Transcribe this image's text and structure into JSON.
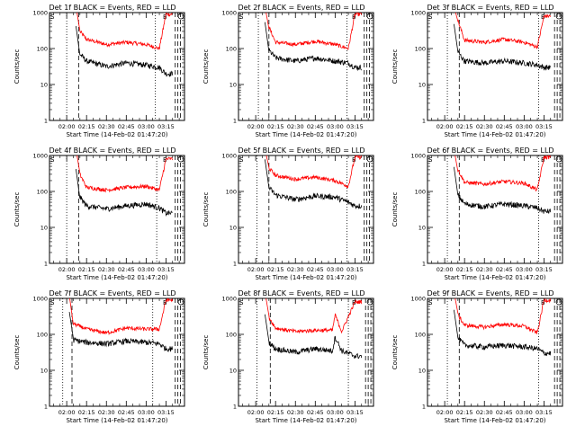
{
  "figure": {
    "x_ticks": [
      "02:00",
      "02:15",
      "02:30",
      "02:45",
      "03:00",
      "03:15"
    ],
    "y_ticks": [
      "1",
      "10",
      "100",
      "1000"
    ],
    "ylabel": "Counts/sec",
    "xlabel": "Start Time (14-Feb-02 01:47:20)",
    "marker_S": "S",
    "marker_E": "E",
    "colors": {
      "events": "#000000",
      "lld": "#ff0000",
      "axes": "#000000"
    }
  },
  "chart_data": [
    {
      "type": "line",
      "title": "Det 1f BLACK = Events, RED = LLD",
      "xlabel": "Start Time (14-Feb-02 01:47:20)",
      "ylabel": "Counts/sec",
      "ylim": [
        1,
        1000
      ],
      "yscale": "log",
      "x": [
        "02:10",
        "02:15",
        "02:30",
        "02:45",
        "03:00",
        "03:10",
        "03:15"
      ],
      "series": [
        {
          "name": "RED = LLD",
          "values": [
            300,
            180,
            130,
            150,
            130,
            100,
            900
          ]
        },
        {
          "name": "BLACK = Events",
          "values": [
            70,
            45,
            32,
            40,
            35,
            30,
            20
          ]
        }
      ]
    },
    {
      "type": "line",
      "title": "Det 2f BLACK = Events, RED = LLD",
      "xlabel": "Start Time (14-Feb-02 01:47:20)",
      "ylabel": "Counts/sec",
      "ylim": [
        1,
        1000
      ],
      "yscale": "log",
      "x": [
        "02:10",
        "02:15",
        "02:30",
        "02:45",
        "03:00",
        "03:10",
        "03:15"
      ],
      "series": [
        {
          "name": "RED = LLD",
          "values": [
            400,
            150,
            130,
            160,
            130,
            100,
            900
          ]
        },
        {
          "name": "BLACK = Events",
          "values": [
            90,
            55,
            45,
            55,
            45,
            40,
            30
          ]
        }
      ]
    },
    {
      "type": "line",
      "title": "Det 3f BLACK = Events, RED = LLD",
      "xlabel": "Start Time (14-Feb-02 01:47:20)",
      "ylabel": "Counts/sec",
      "ylim": [
        1,
        1000
      ],
      "yscale": "log",
      "x": [
        "02:10",
        "02:15",
        "02:30",
        "02:45",
        "03:00",
        "03:10",
        "03:15"
      ],
      "series": [
        {
          "name": "RED = LLD",
          "values": [
            600,
            170,
            150,
            180,
            150,
            110,
            800
          ]
        },
        {
          "name": "BLACK = Events",
          "values": [
            80,
            45,
            40,
            45,
            40,
            35,
            30
          ]
        }
      ]
    },
    {
      "type": "line",
      "title": "Det 4f BLACK = Events, RED = LLD",
      "xlabel": "Start Time (14-Feb-02 01:47:20)",
      "ylabel": "Counts/sec",
      "ylim": [
        1,
        1000
      ],
      "yscale": "log",
      "x": [
        "02:10",
        "02:15",
        "02:30",
        "02:45",
        "03:00",
        "03:10",
        "03:15"
      ],
      "series": [
        {
          "name": "RED = LLD",
          "values": [
            300,
            130,
            110,
            130,
            140,
            110,
            800
          ]
        },
        {
          "name": "BLACK = Events",
          "values": [
            70,
            40,
            33,
            40,
            45,
            35,
            25
          ]
        }
      ]
    },
    {
      "type": "line",
      "title": "Det 5f BLACK = Events, RED = LLD",
      "xlabel": "Start Time (14-Feb-02 01:47:20)",
      "ylabel": "Counts/sec",
      "ylim": [
        1,
        1000
      ],
      "yscale": "log",
      "x": [
        "02:10",
        "02:15",
        "02:30",
        "02:45",
        "03:00",
        "03:10",
        "03:15"
      ],
      "series": [
        {
          "name": "RED = LLD",
          "values": [
            450,
            280,
            220,
            250,
            200,
            140,
            900
          ]
        },
        {
          "name": "BLACK = Events",
          "values": [
            130,
            80,
            60,
            75,
            70,
            50,
            40
          ]
        }
      ]
    },
    {
      "type": "line",
      "title": "Det 6f BLACK = Events, RED = LLD",
      "xlabel": "Start Time (14-Feb-02 01:47:20)",
      "ylabel": "Counts/sec",
      "ylim": [
        1,
        1000
      ],
      "yscale": "log",
      "x": [
        "02:10",
        "02:15",
        "02:30",
        "02:45",
        "03:00",
        "03:10",
        "03:15"
      ],
      "series": [
        {
          "name": "RED = LLD",
          "values": [
            400,
            180,
            160,
            190,
            170,
            110,
            900
          ]
        },
        {
          "name": "BLACK = Events",
          "values": [
            80,
            45,
            38,
            45,
            40,
            35,
            28
          ]
        }
      ]
    },
    {
      "type": "line",
      "title": "Det 7f BLACK = Events, RED = LLD",
      "xlabel": "Start Time (14-Feb-02 01:47:20)",
      "ylabel": "Counts/sec",
      "ylim": [
        1,
        1000
      ],
      "yscale": "log",
      "x": [
        "02:05",
        "02:15",
        "02:30",
        "02:45",
        "03:00",
        "03:10",
        "03:15"
      ],
      "series": [
        {
          "name": "RED = LLD",
          "values": [
            200,
            140,
            110,
            150,
            140,
            140,
            900
          ]
        },
        {
          "name": "BLACK = Events",
          "values": [
            70,
            60,
            55,
            65,
            60,
            55,
            40
          ]
        }
      ]
    },
    {
      "type": "line",
      "title": "Det 8f BLACK = Events, RED = LLD",
      "xlabel": "Start Time (14-Feb-02 01:47:20)",
      "ylabel": "Counts/sec",
      "ylim": [
        1,
        1000
      ],
      "yscale": "log",
      "x": [
        "02:10",
        "02:15",
        "02:30",
        "02:45",
        "02:58",
        "03:00",
        "03:05",
        "03:15"
      ],
      "series": [
        {
          "name": "RED = LLD",
          "values": [
            300,
            150,
            120,
            130,
            130,
            350,
            120,
            800
          ]
        },
        {
          "name": "BLACK = Events",
          "values": [
            60,
            40,
            32,
            40,
            35,
            85,
            35,
            25
          ]
        }
      ]
    },
    {
      "type": "line",
      "title": "Det 9f BLACK = Events, RED = LLD",
      "xlabel": "Start Time (14-Feb-02 01:47:20)",
      "ylabel": "Counts/sec",
      "ylim": [
        1,
        1000
      ],
      "yscale": "log",
      "x": [
        "02:10",
        "02:15",
        "02:30",
        "02:45",
        "03:00",
        "03:10",
        "03:15"
      ],
      "series": [
        {
          "name": "RED = LLD",
          "values": [
            350,
            180,
            160,
            190,
            170,
            110,
            900
          ]
        },
        {
          "name": "BLACK = Events",
          "values": [
            80,
            50,
            45,
            50,
            45,
            40,
            30
          ]
        }
      ]
    }
  ]
}
